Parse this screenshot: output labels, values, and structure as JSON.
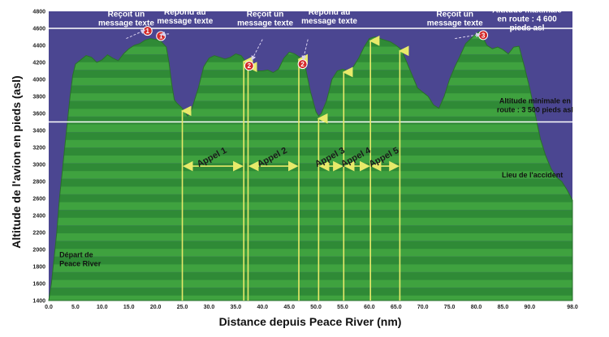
{
  "chart_data": {
    "type": "area",
    "xlabel": "Distance depuis Peace River (nm)",
    "ylabel": "Altitude de l'avion en pieds (asl)",
    "xlim": [
      0,
      98
    ],
    "ylim": [
      1400,
      4800
    ],
    "x_ticks": [
      "0.0",
      "5.0",
      "10.0",
      "15.0",
      "20.0",
      "25.0",
      "30.0",
      "35.0",
      "40.0",
      "45.0",
      "50.0",
      "55.0",
      "60.0",
      "65.0",
      "70.0",
      "75.0",
      "80.0",
      "85.0",
      "90.0",
      "98.0"
    ],
    "y_ticks": [
      "1400",
      "1600",
      "1800",
      "2000",
      "2200",
      "2400",
      "2600",
      "2800",
      "3000",
      "3200",
      "3400",
      "3600",
      "3800",
      "4000",
      "4200",
      "4400",
      "4600",
      "4800"
    ],
    "colors": {
      "sky": "#4b4691",
      "terrain": "#3fa23f",
      "terrain_dark": "#2f8a36",
      "ref_line": "#ffffff",
      "call_line": "#e8ea6a",
      "marker": "#d42a2a"
    },
    "profile": [
      [
        0,
        1400
      ],
      [
        0.5,
        1600
      ],
      [
        1,
        1900
      ],
      [
        1.5,
        2200
      ],
      [
        2,
        2600
      ],
      [
        2.5,
        2900
      ],
      [
        3,
        3200
      ],
      [
        3.5,
        3500
      ],
      [
        4,
        3800
      ],
      [
        4.5,
        4050
      ],
      [
        5,
        4180
      ],
      [
        6,
        4230
      ],
      [
        7,
        4280
      ],
      [
        8,
        4260
      ],
      [
        9,
        4200
      ],
      [
        10,
        4230
      ],
      [
        11,
        4290
      ],
      [
        12,
        4250
      ],
      [
        13,
        4220
      ],
      [
        14,
        4300
      ],
      [
        15,
        4360
      ],
      [
        16,
        4400
      ],
      [
        17,
        4420
      ],
      [
        18,
        4460
      ],
      [
        19,
        4480
      ],
      [
        20,
        4470
      ],
      [
        21,
        4450
      ],
      [
        22,
        4380
      ],
      [
        22.5,
        4200
      ],
      [
        23,
        3950
      ],
      [
        23.5,
        3760
      ],
      [
        24,
        3720
      ],
      [
        25,
        3660
      ],
      [
        26,
        3570
      ],
      [
        26.5,
        3600
      ],
      [
        27,
        3700
      ],
      [
        28,
        3900
      ],
      [
        29,
        4150
      ],
      [
        30,
        4250
      ],
      [
        31,
        4280
      ],
      [
        32,
        4260
      ],
      [
        33,
        4240
      ],
      [
        34,
        4260
      ],
      [
        35,
        4300
      ],
      [
        36,
        4280
      ],
      [
        37,
        4200
      ],
      [
        38,
        4120
      ],
      [
        39,
        4100
      ],
      [
        40,
        4100
      ],
      [
        41,
        4110
      ],
      [
        42,
        4080
      ],
      [
        43,
        4120
      ],
      [
        44,
        4250
      ],
      [
        45,
        4320
      ],
      [
        46,
        4300
      ],
      [
        47,
        4260
      ],
      [
        48,
        4150
      ],
      [
        49,
        3850
      ],
      [
        50,
        3620
      ],
      [
        50.5,
        3570
      ],
      [
        51,
        3600
      ],
      [
        52,
        3750
      ],
      [
        53,
        4000
      ],
      [
        54,
        4100
      ],
      [
        55,
        4120
      ],
      [
        56,
        4100
      ],
      [
        57,
        4150
      ],
      [
        58,
        4250
      ],
      [
        59,
        4380
      ],
      [
        60,
        4480
      ],
      [
        61,
        4500
      ],
      [
        62,
        4480
      ],
      [
        63,
        4460
      ],
      [
        64,
        4440
      ],
      [
        65,
        4400
      ],
      [
        66,
        4350
      ],
      [
        67,
        4200
      ],
      [
        68,
        4050
      ],
      [
        69,
        3900
      ],
      [
        70,
        3850
      ],
      [
        71,
        3800
      ],
      [
        72,
        3700
      ],
      [
        73,
        3660
      ],
      [
        74,
        3800
      ],
      [
        75,
        4000
      ],
      [
        76,
        4150
      ],
      [
        77,
        4280
      ],
      [
        78,
        4420
      ],
      [
        79,
        4480
      ],
      [
        80,
        4540
      ],
      [
        80.5,
        4560
      ],
      [
        81,
        4520
      ],
      [
        82,
        4400
      ],
      [
        83,
        4360
      ],
      [
        84,
        4380
      ],
      [
        85,
        4350
      ],
      [
        86,
        4300
      ],
      [
        87,
        4380
      ],
      [
        88,
        4390
      ],
      [
        89,
        4150
      ],
      [
        90,
        3900
      ],
      [
        91,
        3600
      ],
      [
        92,
        3300
      ],
      [
        93,
        3100
      ],
      [
        94,
        2950
      ],
      [
        95,
        2850
      ],
      [
        96,
        2800
      ],
      [
        97,
        2700
      ],
      [
        98,
        2580
      ]
    ],
    "reference_lines": [
      4600,
      3500
    ],
    "call_lines": [
      {
        "from": 25.0,
        "to": 36.5,
        "label": "Appel 1"
      },
      {
        "from": 37.3,
        "to": 46.8,
        "label": "Appel 2"
      },
      {
        "from": 50.5,
        "to": 55.2,
        "label": "Appel 3"
      },
      {
        "from": 55.2,
        "to": 60.2,
        "label": "Appel 4"
      },
      {
        "from": 60.2,
        "to": 65.7,
        "label": "Appel 5"
      }
    ],
    "markers": [
      {
        "x": 18.5,
        "y": 4570,
        "label": "1"
      },
      {
        "x": 21.0,
        "y": 4510,
        "label": "1"
      },
      {
        "x": 37.5,
        "y": 4160,
        "label": "2"
      },
      {
        "x": 47.5,
        "y": 4180,
        "label": "2"
      },
      {
        "x": 81.3,
        "y": 4520,
        "label": "3"
      }
    ],
    "annotations": [
      {
        "lines": [
          "Reçoit un",
          "message texte"
        ],
        "x": 14.5,
        "y_top": 4740,
        "color": "white"
      },
      {
        "lines": [
          "Répond au",
          "message texte"
        ],
        "x": 25.5,
        "y_top": 4760,
        "color": "white"
      },
      {
        "lines": [
          "Reçoit un",
          "message texte"
        ],
        "x": 40.5,
        "y_top": 4740,
        "color": "white"
      },
      {
        "lines": [
          "Répond au",
          "message texte"
        ],
        "x": 52.5,
        "y_top": 4760,
        "color": "white"
      },
      {
        "lines": [
          "Reçoit un",
          "message texte"
        ],
        "x": 76.0,
        "y_top": 4740,
        "color": "white"
      },
      {
        "lines": [
          "Altitude maximale",
          "en route : 4 600",
          "pieds asl"
        ],
        "x": 89.5,
        "y_top": 4785,
        "color": "white"
      },
      {
        "lines": [
          "Altitude minimale en",
          "route : 3 500 pieds asl"
        ],
        "x": 91.0,
        "y_top": 3720,
        "color": "dark"
      },
      {
        "lines": [
          "Lieu de l'accident"
        ],
        "x": 90.5,
        "y_top": 2850,
        "color": "dark"
      },
      {
        "lines": [
          "Départ de",
          "Peace River"
        ],
        "x": 2.0,
        "y_top": 1910,
        "color": "dark",
        "anchor": "start"
      }
    ]
  }
}
